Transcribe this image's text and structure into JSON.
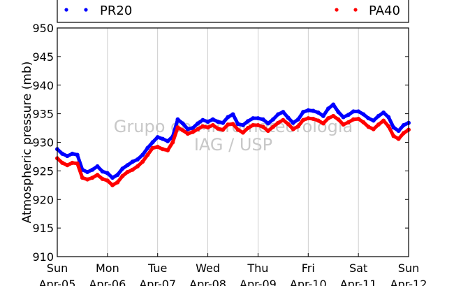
{
  "chart_data": {
    "type": "line",
    "ylabel": "Atmospheric pressure (mb)",
    "ylim": [
      910,
      950
    ],
    "yticks": [
      910,
      915,
      920,
      925,
      930,
      935,
      940,
      945,
      950
    ],
    "xlim": [
      0,
      7
    ],
    "grid": "vertical",
    "legend_position": "top",
    "watermark": [
      "Grupo de Micrometeorologia",
      "IAG / USP"
    ],
    "xticks": [
      {
        "x": 0,
        "day": "Sun",
        "date": "Apr-05"
      },
      {
        "x": 1,
        "day": "Mon",
        "date": "Apr-06"
      },
      {
        "x": 2,
        "day": "Tue",
        "date": "Apr-07"
      },
      {
        "x": 3,
        "day": "Wed",
        "date": "Apr-08"
      },
      {
        "x": 4,
        "day": "Thu",
        "date": "Apr-09"
      },
      {
        "x": 5,
        "day": "Fri",
        "date": "Apr-10"
      },
      {
        "x": 6,
        "day": "Sat",
        "date": "Apr-11"
      },
      {
        "x": 7,
        "day": "Sun",
        "date": "Apr-12"
      }
    ],
    "series": [
      {
        "name": "PR20",
        "color": "#0000ff",
        "points": [
          [
            0.0,
            928.8
          ],
          [
            0.1,
            928.0
          ],
          [
            0.2,
            927.6
          ],
          [
            0.3,
            928.0
          ],
          [
            0.4,
            927.8
          ],
          [
            0.5,
            925.2
          ],
          [
            0.6,
            924.8
          ],
          [
            0.7,
            925.2
          ],
          [
            0.8,
            925.8
          ],
          [
            0.9,
            924.9
          ],
          [
            1.0,
            924.6
          ],
          [
            1.1,
            923.8
          ],
          [
            1.2,
            924.3
          ],
          [
            1.3,
            925.4
          ],
          [
            1.4,
            926.0
          ],
          [
            1.5,
            926.6
          ],
          [
            1.6,
            927.0
          ],
          [
            1.7,
            927.8
          ],
          [
            1.8,
            929.0
          ],
          [
            1.9,
            930.0
          ],
          [
            2.0,
            930.9
          ],
          [
            2.1,
            930.6
          ],
          [
            2.2,
            930.2
          ],
          [
            2.3,
            931.0
          ],
          [
            2.4,
            934.0
          ],
          [
            2.5,
            933.3
          ],
          [
            2.6,
            932.3
          ],
          [
            2.7,
            932.5
          ],
          [
            2.8,
            933.3
          ],
          [
            2.9,
            933.9
          ],
          [
            3.0,
            933.6
          ],
          [
            3.1,
            934.0
          ],
          [
            3.2,
            933.6
          ],
          [
            3.3,
            933.4
          ],
          [
            3.4,
            934.4
          ],
          [
            3.5,
            934.9
          ],
          [
            3.6,
            933.2
          ],
          [
            3.7,
            933.0
          ],
          [
            3.8,
            933.7
          ],
          [
            3.9,
            934.2
          ],
          [
            4.0,
            934.2
          ],
          [
            4.1,
            934.0
          ],
          [
            4.2,
            933.3
          ],
          [
            4.3,
            934.0
          ],
          [
            4.4,
            934.9
          ],
          [
            4.5,
            935.3
          ],
          [
            4.6,
            934.3
          ],
          [
            4.7,
            933.4
          ],
          [
            4.8,
            934.0
          ],
          [
            4.9,
            935.3
          ],
          [
            5.0,
            935.6
          ],
          [
            5.1,
            935.5
          ],
          [
            5.2,
            935.2
          ],
          [
            5.3,
            934.6
          ],
          [
            5.4,
            935.9
          ],
          [
            5.5,
            936.6
          ],
          [
            5.6,
            935.3
          ],
          [
            5.7,
            934.4
          ],
          [
            5.8,
            934.8
          ],
          [
            5.9,
            935.4
          ],
          [
            6.0,
            935.4
          ],
          [
            6.1,
            934.9
          ],
          [
            6.2,
            934.2
          ],
          [
            6.3,
            933.8
          ],
          [
            6.4,
            934.6
          ],
          [
            6.5,
            935.2
          ],
          [
            6.6,
            934.4
          ],
          [
            6.7,
            932.6
          ],
          [
            6.8,
            932.0
          ],
          [
            6.9,
            933.0
          ],
          [
            7.0,
            933.4
          ]
        ]
      },
      {
        "name": "PA40",
        "color": "#ff0000",
        "points": [
          [
            0.0,
            927.2
          ],
          [
            0.1,
            926.4
          ],
          [
            0.2,
            926.0
          ],
          [
            0.3,
            926.4
          ],
          [
            0.4,
            926.3
          ],
          [
            0.5,
            923.8
          ],
          [
            0.6,
            923.5
          ],
          [
            0.7,
            923.8
          ],
          [
            0.8,
            924.3
          ],
          [
            0.9,
            923.6
          ],
          [
            1.0,
            923.3
          ],
          [
            1.1,
            922.5
          ],
          [
            1.2,
            923.0
          ],
          [
            1.3,
            924.1
          ],
          [
            1.4,
            924.8
          ],
          [
            1.5,
            925.2
          ],
          [
            1.6,
            925.8
          ],
          [
            1.7,
            926.6
          ],
          [
            1.8,
            927.8
          ],
          [
            1.9,
            929.0
          ],
          [
            2.0,
            929.2
          ],
          [
            2.1,
            928.8
          ],
          [
            2.2,
            928.6
          ],
          [
            2.3,
            930.0
          ],
          [
            2.4,
            932.6
          ],
          [
            2.5,
            932.1
          ],
          [
            2.6,
            931.5
          ],
          [
            2.7,
            931.8
          ],
          [
            2.8,
            932.3
          ],
          [
            2.9,
            932.8
          ],
          [
            3.0,
            932.6
          ],
          [
            3.1,
            933.0
          ],
          [
            3.2,
            932.4
          ],
          [
            3.3,
            932.2
          ],
          [
            3.4,
            933.1
          ],
          [
            3.5,
            933.2
          ],
          [
            3.6,
            932.2
          ],
          [
            3.7,
            931.7
          ],
          [
            3.8,
            932.5
          ],
          [
            3.9,
            933.0
          ],
          [
            4.0,
            933.0
          ],
          [
            4.1,
            932.7
          ],
          [
            4.2,
            932.0
          ],
          [
            4.3,
            932.7
          ],
          [
            4.4,
            933.4
          ],
          [
            4.5,
            933.9
          ],
          [
            4.6,
            933.2
          ],
          [
            4.7,
            932.3
          ],
          [
            4.8,
            932.8
          ],
          [
            4.9,
            933.9
          ],
          [
            5.0,
            934.2
          ],
          [
            5.1,
            934.1
          ],
          [
            5.2,
            933.8
          ],
          [
            5.3,
            933.3
          ],
          [
            5.4,
            934.2
          ],
          [
            5.5,
            934.6
          ],
          [
            5.6,
            934.0
          ],
          [
            5.7,
            933.1
          ],
          [
            5.8,
            933.5
          ],
          [
            5.9,
            934.0
          ],
          [
            6.0,
            934.1
          ],
          [
            6.1,
            933.5
          ],
          [
            6.2,
            932.7
          ],
          [
            6.3,
            932.3
          ],
          [
            6.4,
            933.1
          ],
          [
            6.5,
            933.8
          ],
          [
            6.6,
            932.8
          ],
          [
            6.7,
            931.1
          ],
          [
            6.8,
            930.6
          ],
          [
            6.9,
            931.6
          ],
          [
            7.0,
            932.2
          ]
        ]
      }
    ]
  }
}
